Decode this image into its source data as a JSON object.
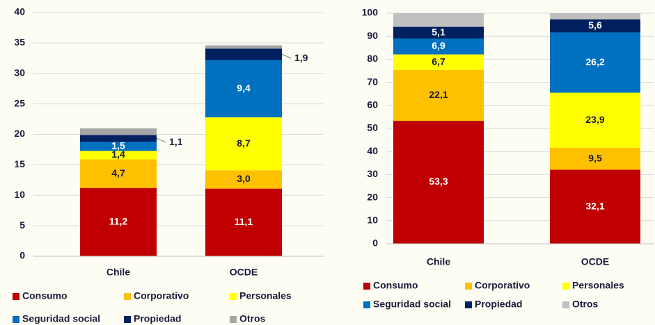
{
  "chart_data": [
    {
      "type": "bar",
      "stacked": true,
      "ylim": [
        0,
        40
      ],
      "yticks": [
        0,
        5,
        10,
        15,
        20,
        25,
        30,
        35,
        40
      ],
      "grid": true,
      "legend": "bottom",
      "categories": [
        "Chile",
        "OCDE"
      ],
      "series": [
        {
          "name": "Consumo",
          "color": "#c00000",
          "values": [
            11.2,
            11.1
          ],
          "value_labels": [
            "11,2",
            "11,1"
          ]
        },
        {
          "name": "Corporativo",
          "color": "#ffc000",
          "values": [
            4.7,
            3.0
          ],
          "value_labels": [
            "4,7",
            "3,0"
          ]
        },
        {
          "name": "Personales",
          "color": "#ffff00",
          "values": [
            1.4,
            8.7
          ],
          "value_labels": [
            "1,4",
            "8,7"
          ]
        },
        {
          "name": "Seguridad social",
          "color": "#0070c0",
          "values": [
            1.5,
            9.4
          ],
          "value_labels": [
            "1,5",
            "9,4"
          ]
        },
        {
          "name": "Propiedad",
          "color": "#002060",
          "values": [
            1.1,
            1.9
          ],
          "value_labels": [
            "1,1",
            "1,9"
          ],
          "label_position": "outside"
        },
        {
          "name": "Otros",
          "color": "#a6a6a6",
          "values": [
            1.1,
            0.5
          ]
        }
      ]
    },
    {
      "type": "bar",
      "stacked": true,
      "ylim": [
        0,
        100
      ],
      "yticks": [
        0,
        10,
        20,
        30,
        40,
        50,
        60,
        70,
        80,
        90,
        100
      ],
      "grid": true,
      "legend": "bottom",
      "categories": [
        "Chile",
        "OCDE"
      ],
      "series": [
        {
          "name": "Consumo",
          "color": "#c00000",
          "values": [
            53.3,
            32.1
          ],
          "value_labels": [
            "53,3",
            "32,1"
          ]
        },
        {
          "name": "Corporativo",
          "color": "#ffc000",
          "values": [
            22.1,
            9.5
          ],
          "value_labels": [
            "22,1",
            "9,5"
          ]
        },
        {
          "name": "Personales",
          "color": "#ffff00",
          "values": [
            6.7,
            23.9
          ],
          "value_labels": [
            "6,7",
            "23,9"
          ]
        },
        {
          "name": "Seguridad social",
          "color": "#0070c0",
          "values": [
            6.9,
            26.2
          ],
          "value_labels": [
            "6,9",
            "26,2"
          ]
        },
        {
          "name": "Propiedad",
          "color": "#002060",
          "values": [
            5.1,
            5.6
          ],
          "value_labels": [
            "5,1",
            "5,6"
          ]
        },
        {
          "name": "Otros",
          "color": "#c0c0c0",
          "values": [
            5.9,
            2.7
          ]
        }
      ]
    }
  ]
}
